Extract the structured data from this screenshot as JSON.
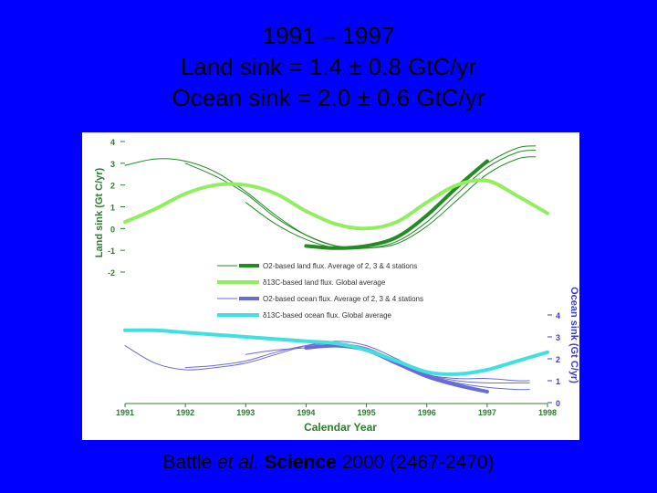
{
  "title": {
    "line1": "1991 – 1997",
    "line2": "Land sink = 1.4 ± 0.8 GtC/yr",
    "line3": "Ocean sink = 2.0 ± 0.6 GtC/yr"
  },
  "citation": {
    "author": "Battle",
    "etal": "et al.",
    "journal": "Science",
    "rest": "2000 (2467-2470)"
  },
  "colors": {
    "background": "#0000ff",
    "land_dark": "#228b22",
    "land_light": "#90ee60",
    "ocean_dark": "#6b6bd6",
    "ocean_light": "#40e0e0",
    "axis_text": "#2e7d32",
    "ocean_axis_text": "#4040c0"
  },
  "chart_data": {
    "type": "line",
    "xlabel": "Calendar Year",
    "x_ticks": [
      "1991",
      "1992",
      "1993",
      "1994",
      "1995",
      "1996",
      "1997",
      "1998"
    ],
    "xlim": [
      1991,
      1998
    ],
    "land_axis": {
      "label": "Land sink (Gt C/yr)",
      "ticks": [
        "4",
        "3",
        "2",
        "1",
        "0",
        "-1",
        "-2"
      ],
      "ylim": [
        -2,
        4
      ]
    },
    "ocean_axis": {
      "label": "Ocean sink (Gt C/yr)",
      "ticks": [
        "4",
        "3",
        "2",
        "1",
        "0"
      ],
      "ylim": [
        0,
        4
      ]
    },
    "legend": [
      {
        "text": "O2-based land flux.  Average of 2, 3 & 4 stations",
        "color": "#228b22",
        "style": "thin-thick"
      },
      {
        "text": "δ13C-based land flux.  Global average",
        "color": "#90ee60",
        "style": "thick"
      },
      {
        "text": "O2-based ocean flux.  Average of 2, 3 & 4 stations",
        "color": "#6b6bd6",
        "style": "thin-thick"
      },
      {
        "text": "δ13C-based ocean flux.  Global average",
        "color": "#40e0e0",
        "style": "thick"
      }
    ],
    "series": [
      {
        "group": "land",
        "color": "#228b22",
        "width": 1,
        "x": [
          1991,
          1991.5,
          1992,
          1992.5,
          1993,
          1993.5,
          1994,
          1994.5,
          1995,
          1995.5,
          1996,
          1996.5,
          1997,
          1997.5,
          1997.8
        ],
        "y": [
          2.9,
          3.2,
          3.1,
          2.6,
          1.7,
          0.6,
          -0.3,
          -0.8,
          -0.8,
          -0.4,
          0.6,
          1.9,
          3.0,
          3.7,
          3.8
        ]
      },
      {
        "group": "land",
        "color": "#228b22",
        "width": 1,
        "x": [
          1992,
          1992.5,
          1993,
          1993.5,
          1994,
          1994.5,
          1995,
          1995.5,
          1996,
          1996.5,
          1997,
          1997.5,
          1997.8
        ],
        "y": [
          3.0,
          2.4,
          1.6,
          0.5,
          -0.3,
          -0.8,
          -0.9,
          -0.6,
          0.3,
          1.6,
          2.8,
          3.5,
          3.6
        ]
      },
      {
        "group": "land",
        "color": "#228b22",
        "width": 1,
        "x": [
          1993,
          1993.5,
          1994,
          1994.5,
          1995,
          1995.5,
          1996,
          1996.5,
          1997,
          1997.5,
          1997.8
        ],
        "y": [
          1.2,
          0.2,
          -0.5,
          -0.9,
          -0.9,
          -0.7,
          0.1,
          1.3,
          2.5,
          3.2,
          3.3
        ]
      },
      {
        "group": "land",
        "color": "#228b22",
        "width": 4,
        "x": [
          1994,
          1994.5,
          1995,
          1995.5,
          1996,
          1996.5,
          1997
        ],
        "y": [
          -0.8,
          -0.9,
          -0.8,
          -0.4,
          0.6,
          1.9,
          3.1
        ]
      },
      {
        "group": "land",
        "color": "#90ee60",
        "width": 4,
        "x": [
          1991,
          1991.5,
          1992,
          1992.5,
          1993,
          1993.5,
          1994,
          1994.5,
          1995,
          1995.5,
          1996,
          1996.5,
          1997,
          1997.5,
          1998
        ],
        "y": [
          0.3,
          0.9,
          1.6,
          2.0,
          2.0,
          1.6,
          0.8,
          0.2,
          0.0,
          0.3,
          1.2,
          2.0,
          2.2,
          1.5,
          0.7
        ]
      },
      {
        "group": "ocean",
        "color": "#6b6bd6",
        "width": 1,
        "x": [
          1991,
          1991.5,
          1992,
          1992.5,
          1993,
          1993.5,
          1994,
          1994.5,
          1995,
          1995.5,
          1996,
          1996.5,
          1997,
          1997.5,
          1997.7
        ],
        "y": [
          2.6,
          1.8,
          1.5,
          1.6,
          1.8,
          2.2,
          2.6,
          2.8,
          2.6,
          2.0,
          1.3,
          1.1,
          1.1,
          1.0,
          1.0
        ]
      },
      {
        "group": "ocean",
        "color": "#6b6bd6",
        "width": 1,
        "x": [
          1992,
          1992.5,
          1993,
          1993.5,
          1994,
          1994.5,
          1995,
          1995.5,
          1996,
          1996.5,
          1997,
          1997.5,
          1997.7
        ],
        "y": [
          1.6,
          1.7,
          1.9,
          2.3,
          2.6,
          2.7,
          2.5,
          1.9,
          1.3,
          1.0,
          0.9,
          0.9,
          0.9
        ]
      },
      {
        "group": "ocean",
        "color": "#6b6bd6",
        "width": 1,
        "x": [
          1993,
          1993.5,
          1994,
          1994.5,
          1995,
          1995.5,
          1996,
          1996.5,
          1997,
          1997.5,
          1997.7
        ],
        "y": [
          2.2,
          2.4,
          2.5,
          2.6,
          2.4,
          1.9,
          1.3,
          0.9,
          0.7,
          0.6,
          0.6
        ]
      },
      {
        "group": "ocean",
        "color": "#6b6bd6",
        "width": 4,
        "x": [
          1994,
          1994.5,
          1995,
          1995.5,
          1996,
          1996.5,
          1997
        ],
        "y": [
          2.5,
          2.6,
          2.4,
          1.8,
          1.2,
          0.8,
          0.5
        ]
      },
      {
        "group": "ocean",
        "color": "#40e0e0",
        "width": 4,
        "x": [
          1991,
          1991.5,
          1992,
          1992.5,
          1993,
          1993.5,
          1994,
          1994.5,
          1995,
          1995.5,
          1996,
          1996.5,
          1997,
          1997.5,
          1998
        ],
        "y": [
          3.3,
          3.3,
          3.2,
          3.1,
          3.0,
          2.9,
          2.8,
          2.7,
          2.4,
          1.9,
          1.4,
          1.3,
          1.5,
          1.9,
          2.3
        ]
      }
    ]
  }
}
